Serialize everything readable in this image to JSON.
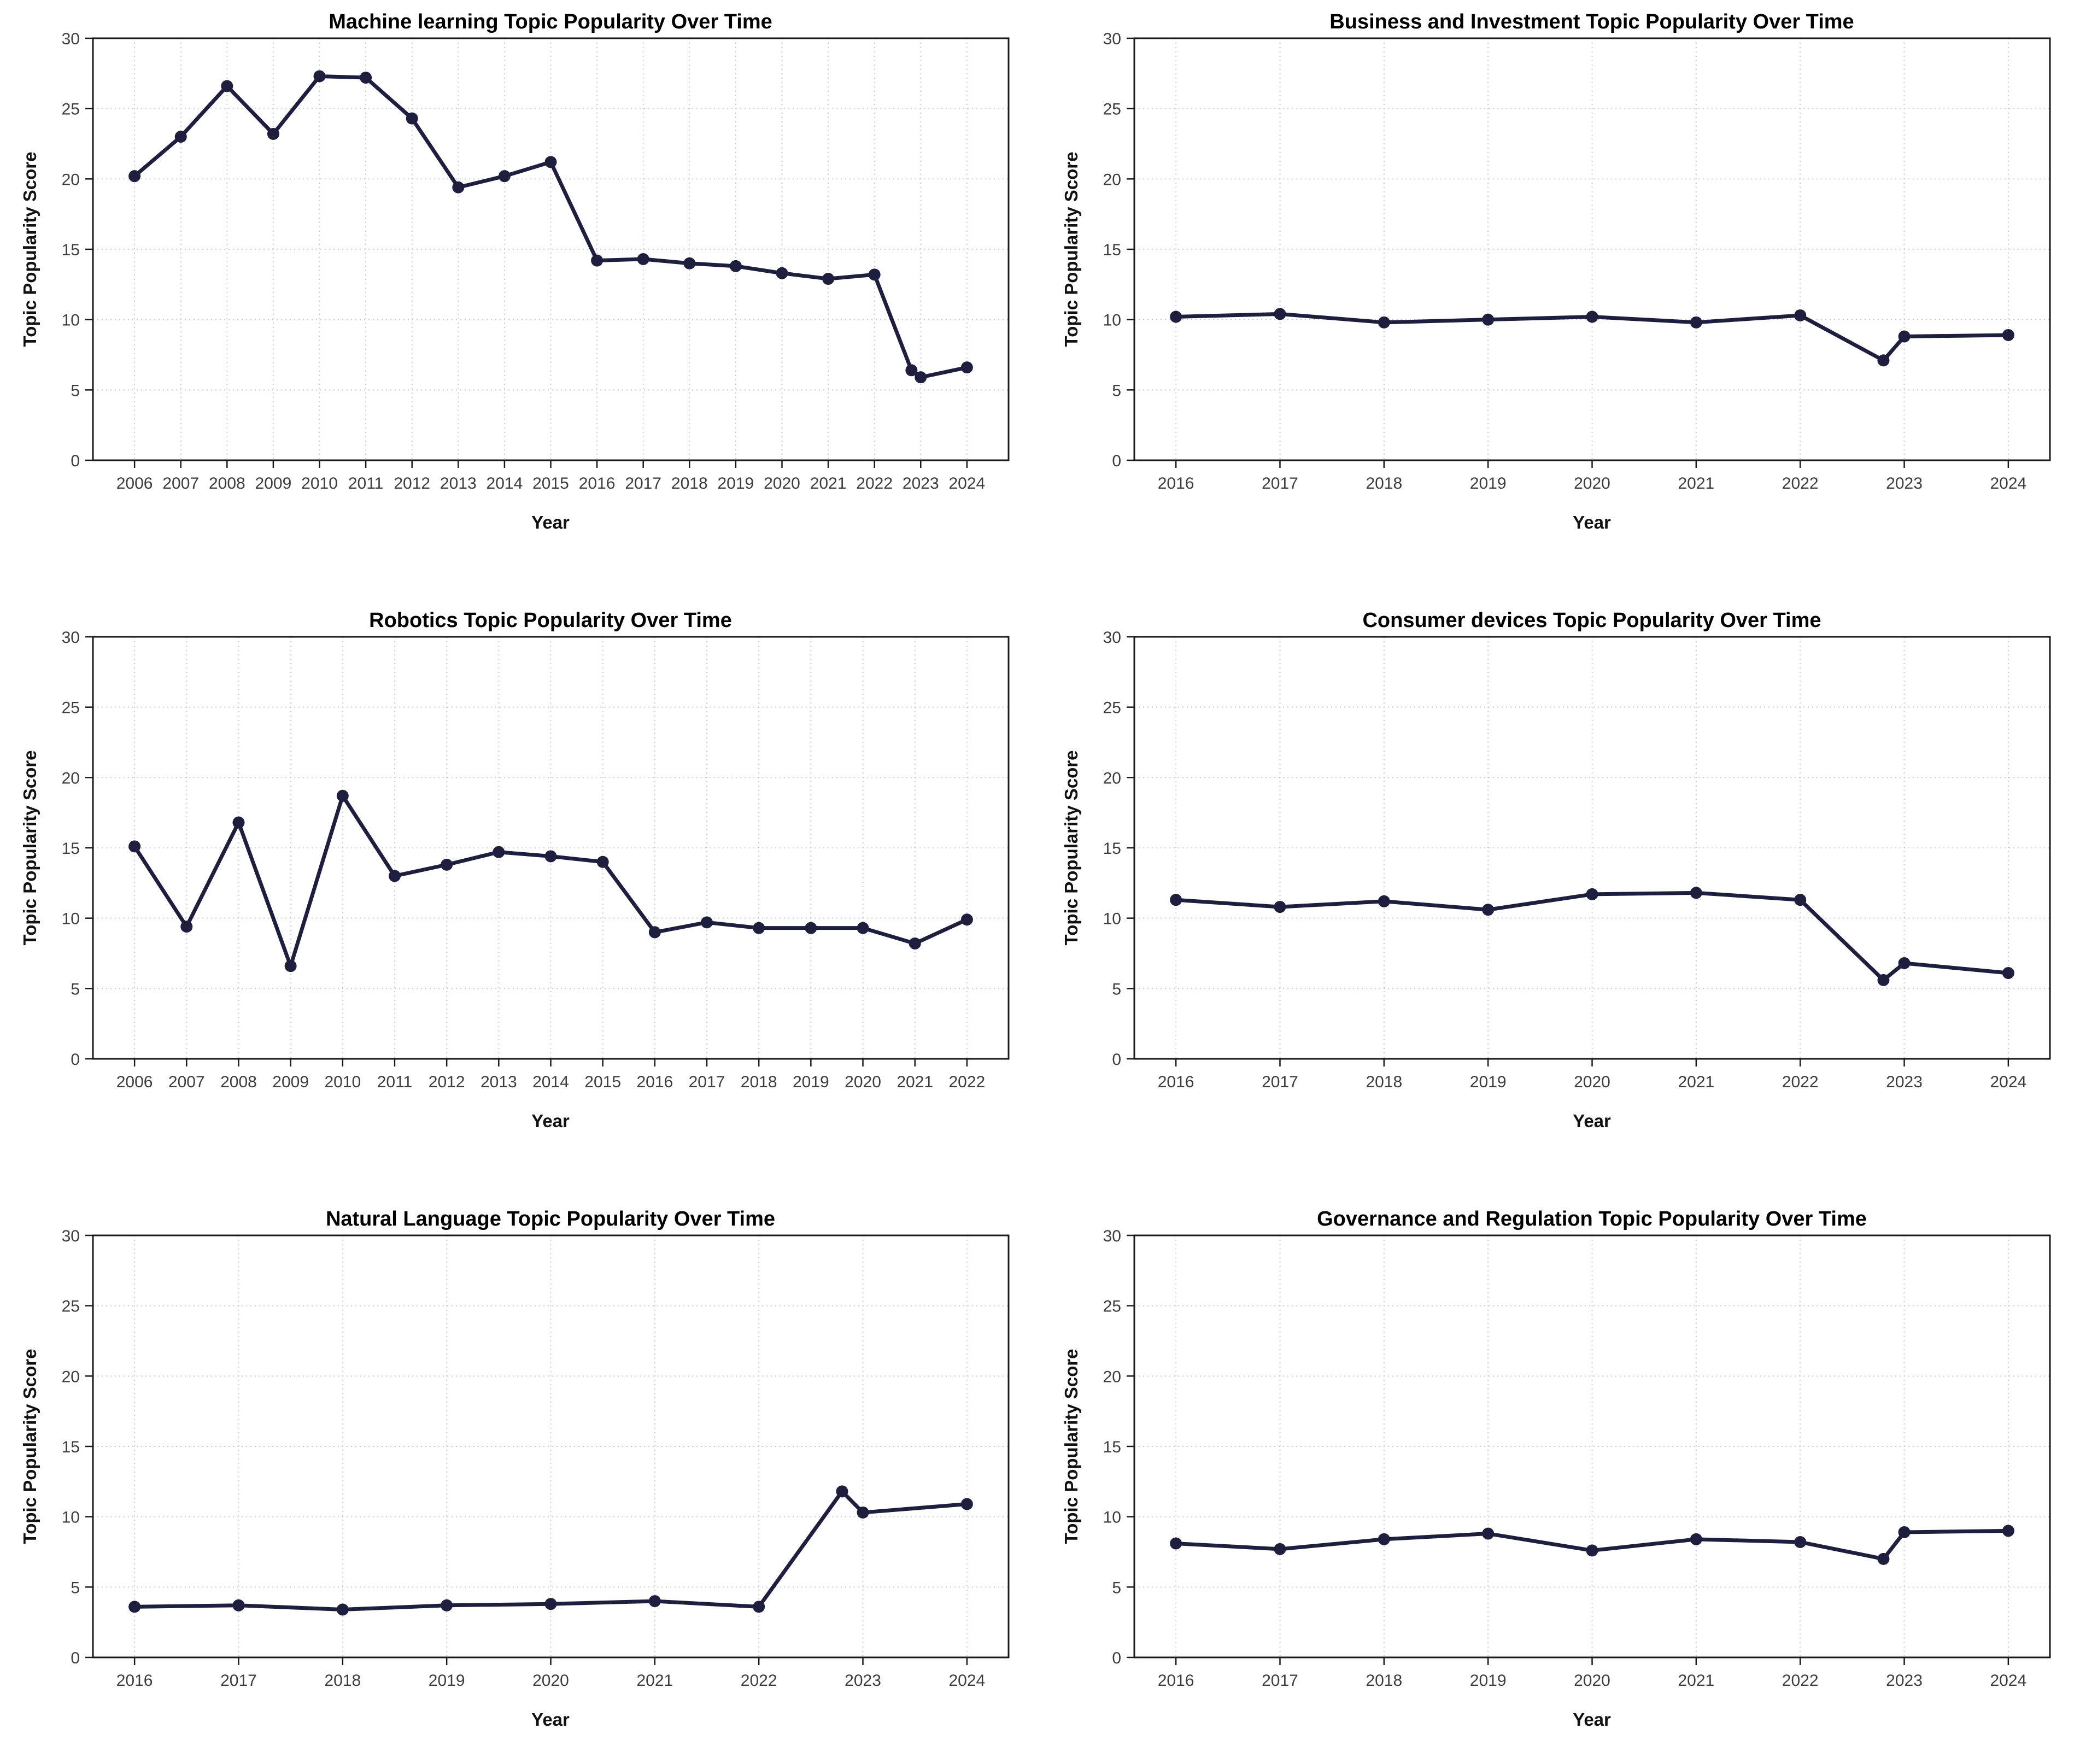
{
  "page": {
    "background_color": "#ffffff"
  },
  "style": {
    "line_color": "#1e1e3e",
    "marker_color": "#1e1e3e",
    "grid_color": "#c9c9c9",
    "spine_color": "#1a1a1a",
    "tick_color": "#1a1a1a",
    "tick_label_color": "#3d3d3d",
    "title_color": "#000000",
    "axis_label_color": "#111111"
  },
  "chart_data": [
    {
      "type": "line",
      "title": "Machine learning Topic Popularity Over Time",
      "xlabel": "Year",
      "ylabel": "Topic Popularity Score",
      "grid": true,
      "legend_position": "none",
      "marker": "circle",
      "x": [
        2006,
        2007,
        2008,
        2009,
        2010,
        2011,
        2012,
        2013,
        2014,
        2015,
        2016,
        2017,
        2018,
        2019,
        2020,
        2021,
        2022,
        2022.8,
        2023,
        2024
      ],
      "y": [
        20.2,
        23.0,
        26.6,
        23.2,
        27.3,
        27.2,
        24.3,
        19.4,
        20.2,
        21.2,
        14.2,
        14.3,
        14.0,
        13.8,
        13.3,
        12.9,
        13.2,
        6.4,
        5.9,
        6.6
      ],
      "xticks": [
        2006,
        2007,
        2008,
        2009,
        2010,
        2011,
        2012,
        2013,
        2014,
        2015,
        2016,
        2017,
        2018,
        2019,
        2020,
        2021,
        2022,
        2023,
        2024
      ],
      "yticks": [
        0,
        5,
        10,
        15,
        20,
        25,
        30
      ],
      "xlim": [
        2005.1,
        2024.9
      ],
      "ylim": [
        0,
        30
      ]
    },
    {
      "type": "line",
      "title": "Business and Investment Topic Popularity Over Time",
      "xlabel": "Year",
      "ylabel": "Topic Popularity Score",
      "grid": true,
      "legend_position": "none",
      "marker": "circle",
      "x": [
        2016,
        2017,
        2018,
        2019,
        2020,
        2021,
        2022,
        2022.8,
        2023,
        2024
      ],
      "y": [
        10.2,
        10.4,
        9.8,
        10.0,
        10.2,
        9.8,
        10.3,
        7.1,
        8.8,
        8.9
      ],
      "xticks": [
        2016,
        2017,
        2018,
        2019,
        2020,
        2021,
        2022,
        2023,
        2024
      ],
      "yticks": [
        0,
        5,
        10,
        15,
        20,
        25,
        30
      ],
      "xlim": [
        2015.6,
        2024.4
      ],
      "ylim": [
        0,
        30
      ]
    },
    {
      "type": "line",
      "title": "Robotics Topic Popularity Over Time",
      "xlabel": "Year",
      "ylabel": "Topic Popularity Score",
      "grid": true,
      "legend_position": "none",
      "marker": "circle",
      "x": [
        2006,
        2007,
        2008,
        2009,
        2010,
        2011,
        2012,
        2013,
        2014,
        2015,
        2016,
        2017,
        2018,
        2019,
        2020,
        2021,
        2022
      ],
      "y": [
        15.1,
        9.4,
        16.8,
        6.6,
        18.7,
        13.0,
        13.8,
        14.7,
        14.4,
        14.0,
        9.0,
        9.7,
        9.3,
        9.3,
        9.3,
        8.2,
        9.9
      ],
      "xticks": [
        2006,
        2007,
        2008,
        2009,
        2010,
        2011,
        2012,
        2013,
        2014,
        2015,
        2016,
        2017,
        2018,
        2019,
        2020,
        2021,
        2022
      ],
      "yticks": [
        0,
        5,
        10,
        15,
        20,
        25,
        30
      ],
      "xlim": [
        2005.2,
        2022.8
      ],
      "ylim": [
        0,
        30
      ]
    },
    {
      "type": "line",
      "title": "Consumer devices Topic Popularity Over Time",
      "xlabel": "Year",
      "ylabel": "Topic Popularity Score",
      "grid": true,
      "legend_position": "none",
      "marker": "circle",
      "x": [
        2016,
        2017,
        2018,
        2019,
        2020,
        2021,
        2022,
        2022.8,
        2023,
        2024
      ],
      "y": [
        11.3,
        10.8,
        11.2,
        10.6,
        11.7,
        11.8,
        11.3,
        5.6,
        6.8,
        6.1
      ],
      "xticks": [
        2016,
        2017,
        2018,
        2019,
        2020,
        2021,
        2022,
        2023,
        2024
      ],
      "yticks": [
        0,
        5,
        10,
        15,
        20,
        25,
        30
      ],
      "xlim": [
        2015.6,
        2024.4
      ],
      "ylim": [
        0,
        30
      ]
    },
    {
      "type": "line",
      "title": "Natural Language Topic Popularity Over Time",
      "xlabel": "Year",
      "ylabel": "Topic Popularity Score",
      "grid": true,
      "legend_position": "none",
      "marker": "circle",
      "x": [
        2016,
        2017,
        2018,
        2019,
        2020,
        2021,
        2022,
        2022.8,
        2023,
        2024
      ],
      "y": [
        3.6,
        3.7,
        3.4,
        3.7,
        3.8,
        4.0,
        3.6,
        11.8,
        10.3,
        10.9
      ],
      "xticks": [
        2016,
        2017,
        2018,
        2019,
        2020,
        2021,
        2022,
        2023,
        2024
      ],
      "yticks": [
        0,
        5,
        10,
        15,
        20,
        25,
        30
      ],
      "xlim": [
        2015.6,
        2024.4
      ],
      "ylim": [
        0,
        30
      ]
    },
    {
      "type": "line",
      "title": "Governance and Regulation Topic Popularity Over Time",
      "xlabel": "Year",
      "ylabel": "Topic Popularity Score",
      "grid": true,
      "legend_position": "none",
      "marker": "circle",
      "x": [
        2016,
        2017,
        2018,
        2019,
        2020,
        2021,
        2022,
        2022.8,
        2023,
        2024
      ],
      "y": [
        8.1,
        7.7,
        8.4,
        8.8,
        7.6,
        8.4,
        8.2,
        7.0,
        8.9,
        9.0
      ],
      "xticks": [
        2016,
        2017,
        2018,
        2019,
        2020,
        2021,
        2022,
        2023,
        2024
      ],
      "yticks": [
        0,
        5,
        10,
        15,
        20,
        25,
        30
      ],
      "xlim": [
        2015.6,
        2024.4
      ],
      "ylim": [
        0,
        30
      ]
    }
  ]
}
